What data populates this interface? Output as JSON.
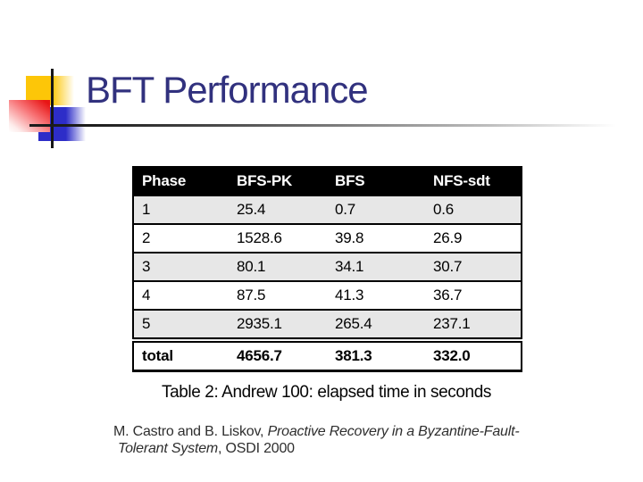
{
  "slide": {
    "title": "BFT Performance"
  },
  "table": {
    "columns": [
      "Phase",
      "BFS-PK",
      "BFS",
      "NFS-sdt"
    ],
    "rows": [
      [
        "1",
        "25.4",
        "0.7",
        "0.6"
      ],
      [
        "2",
        "1528.6",
        "39.8",
        "26.9"
      ],
      [
        "3",
        "80.1",
        "34.1",
        "30.7"
      ],
      [
        "4",
        "87.5",
        "41.3",
        "36.7"
      ],
      [
        "5",
        "2935.1",
        "265.4",
        "237.1"
      ]
    ],
    "total_row": [
      "total",
      "4656.7",
      "381.3",
      "332.0"
    ]
  },
  "caption": "Table 2: Andrew 100: elapsed time in seconds",
  "citation": {
    "line1_regular": "M. Castro and B. Liskov, ",
    "line1_italic": "Proactive Recovery in a Byzantine-Fault-",
    "line2_italic": "Tolerant System",
    "line2_regular": ", OSDI 2000"
  },
  "colors": {
    "title_text": "#31317e",
    "header_bg": "#000000",
    "header_text": "#ffffff",
    "shaded_row_bg": "#e7e7e7",
    "decoration_yellow": "#fdc608",
    "decoration_red": "#e81515",
    "decoration_blue": "#2d2dc8"
  }
}
